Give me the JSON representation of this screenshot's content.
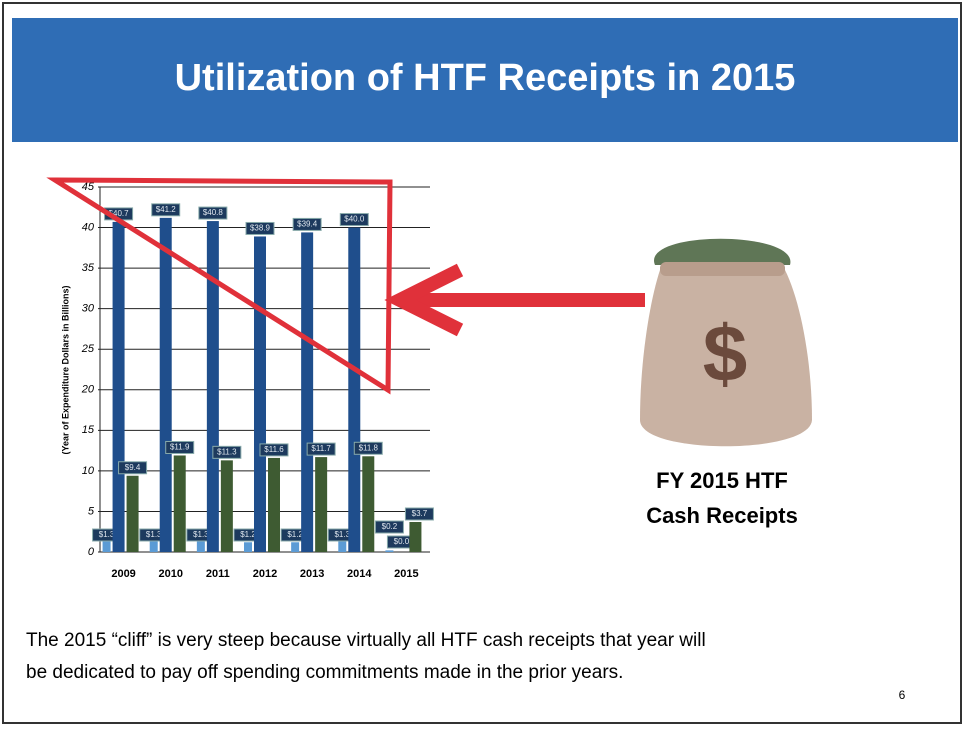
{
  "title": "Utilization of HTF Receipts in 2015",
  "chart_data": {
    "type": "bar",
    "ylabel": "(Year of Expenditure Dollars in Billions)",
    "categories": [
      "2009",
      "2010",
      "2011",
      "2012",
      "2013",
      "2014",
      "2015"
    ],
    "series": [
      {
        "color": "#5b9bd5",
        "values": [
          1.3,
          1.3,
          1.3,
          1.2,
          1.2,
          1.3,
          0.2
        ],
        "value_labels": [
          "$1.3",
          "$1.3",
          "$1.3",
          "$1.2",
          "$1.2",
          "$1.3",
          "$0.2"
        ]
      },
      {
        "color": "#1f4e8c",
        "values": [
          40.7,
          41.2,
          40.8,
          38.9,
          39.4,
          40.0,
          0.0
        ],
        "value_labels": [
          "$40.7",
          "$41.2",
          "$40.8",
          "$38.9",
          "$39.4",
          "$40.0",
          "$0.0"
        ]
      },
      {
        "color": "#3e5b32",
        "values": [
          9.4,
          11.9,
          11.3,
          11.6,
          11.7,
          11.8,
          3.7
        ],
        "value_labels": [
          "$9.4",
          "$11.9",
          "$11.3",
          "$11.6",
          "$11.7",
          "$11.8",
          "$3.7"
        ]
      }
    ],
    "ylim": [
      0,
      45
    ],
    "yticks": [
      0,
      5,
      10,
      15,
      20,
      25,
      30,
      35,
      40,
      45
    ],
    "grid": true
  },
  "bag_label": [
    "FY 2015 HTF",
    "Cash Receipts"
  ],
  "bag_symbol": "$",
  "caption": [
    "The 2015 “cliff” is very steep because virtually all HTF cash receipts that year will",
    "be dedicated to pay off spending commitments made in the prior years."
  ],
  "page_number": "6"
}
